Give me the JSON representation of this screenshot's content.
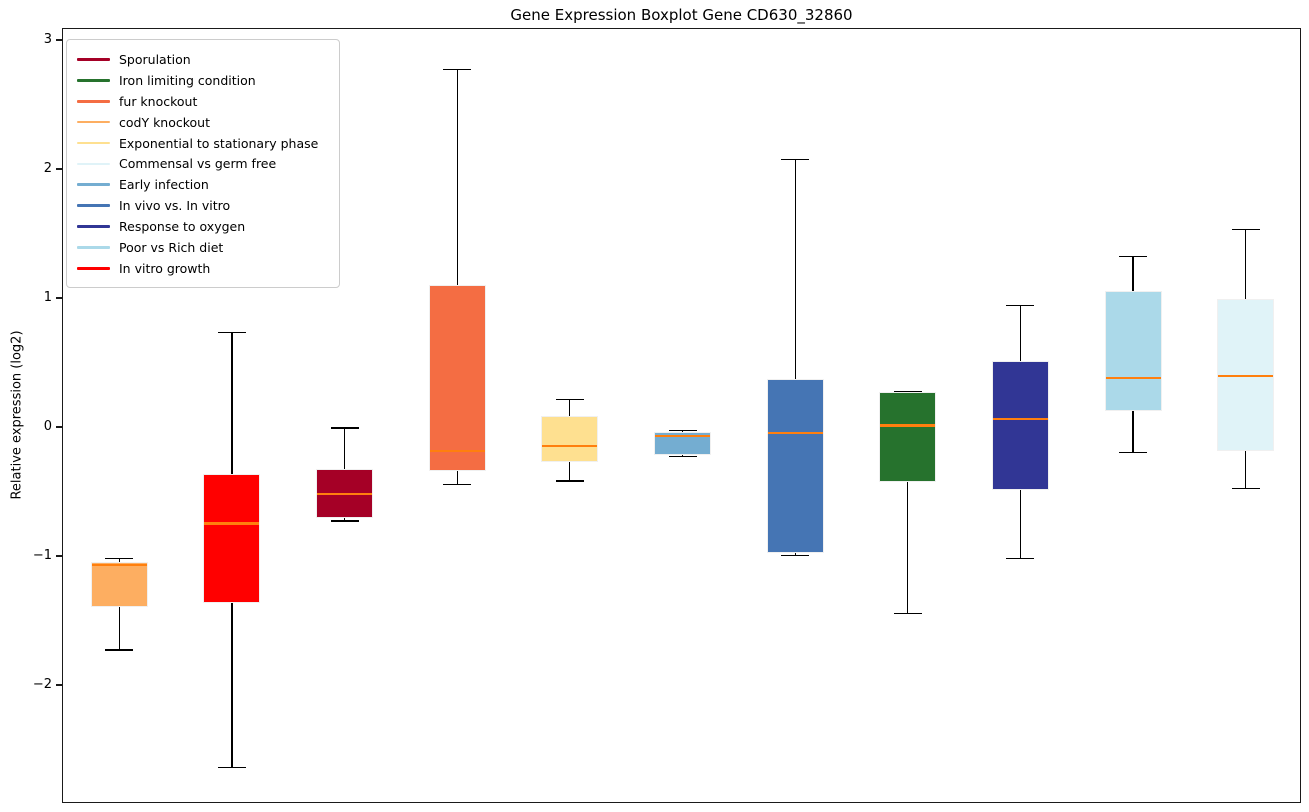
{
  "chart_data": {
    "type": "boxplot",
    "title": "Gene Expression Boxplot Gene CD630_32860",
    "ylabel": "Relative expression (log2)",
    "xlabel": "",
    "ylim": [
      -2.92,
      3.09
    ],
    "grid": false,
    "legend_position": "upper left",
    "median_color": "#ff7f0e",
    "yticks": [
      {
        "label": "3",
        "value": 3
      },
      {
        "label": "2",
        "value": 2
      },
      {
        "label": "1",
        "value": 1
      },
      {
        "label": "0",
        "value": 0
      },
      {
        "label": "−1",
        "value": -1
      },
      {
        "label": "−2",
        "value": -2
      }
    ],
    "series": [
      {
        "label": "codY knockout",
        "color": "#fdae61",
        "whisker_low": -1.72,
        "q1": -1.39,
        "median": -1.06,
        "q3": -1.04,
        "whisker_high": -1.01
      },
      {
        "label": "In vitro growth",
        "color": "#ff0000",
        "whisker_low": -2.63,
        "q1": -1.36,
        "median": -0.74,
        "q3": -0.36,
        "whisker_high": 0.74
      },
      {
        "label": "Sporulation",
        "color": "#a50026",
        "whisker_low": -0.72,
        "q1": -0.7,
        "median": -0.51,
        "q3": -0.32,
        "whisker_high": 0.0
      },
      {
        "label": "fur knockout",
        "color": "#f46d43",
        "whisker_low": -0.44,
        "q1": -0.33,
        "median": -0.18,
        "q3": 1.11,
        "whisker_high": 2.78
      },
      {
        "label": "Exponential to stationary phase",
        "color": "#fee090",
        "whisker_low": -0.41,
        "q1": -0.26,
        "median": -0.14,
        "q3": 0.09,
        "whisker_high": 0.22
      },
      {
        "label": "Early infection",
        "color": "#74add1",
        "whisker_low": -0.22,
        "q1": -0.21,
        "median": -0.06,
        "q3": -0.03,
        "whisker_high": -0.02
      },
      {
        "label": "In vivo vs. In vitro",
        "color": "#4575b4",
        "whisker_low": -0.99,
        "q1": -0.97,
        "median": -0.04,
        "q3": 0.38,
        "whisker_high": 2.08
      },
      {
        "label": "Iron limiting condition",
        "color": "#26722d",
        "whisker_low": -1.44,
        "q1": -0.42,
        "median": 0.02,
        "q3": 0.28,
        "whisker_high": 0.28
      },
      {
        "label": "Response to oxygen",
        "color": "#313695",
        "whisker_low": -1.01,
        "q1": -0.48,
        "median": 0.07,
        "q3": 0.52,
        "whisker_high": 0.95
      },
      {
        "label": "Poor vs Rich diet",
        "color": "#abd9e9",
        "whisker_low": -0.19,
        "q1": 0.13,
        "median": 0.39,
        "q3": 1.06,
        "whisker_high": 1.33
      },
      {
        "label": "Commensal vs germ free",
        "color": "#e0f3f8",
        "whisker_low": -0.47,
        "q1": -0.18,
        "median": 0.4,
        "q3": 1.0,
        "whisker_high": 1.54
      }
    ],
    "legend": [
      {
        "label": "Sporulation",
        "color": "#a50026"
      },
      {
        "label": "Iron limiting condition",
        "color": "#26722d"
      },
      {
        "label": "fur knockout",
        "color": "#f46d43"
      },
      {
        "label": "codY knockout",
        "color": "#fdae61"
      },
      {
        "label": "Exponential to stationary phase",
        "color": "#fee090"
      },
      {
        "label": "Commensal vs germ free",
        "color": "#e0f3f8"
      },
      {
        "label": "Early infection",
        "color": "#74add1"
      },
      {
        "label": "In vivo vs. In vitro",
        "color": "#4575b4"
      },
      {
        "label": "Response to oxygen",
        "color": "#313695"
      },
      {
        "label": "Poor vs Rich diet",
        "color": "#abd9e9"
      },
      {
        "label": "In vitro growth",
        "color": "#ff0000"
      }
    ]
  }
}
